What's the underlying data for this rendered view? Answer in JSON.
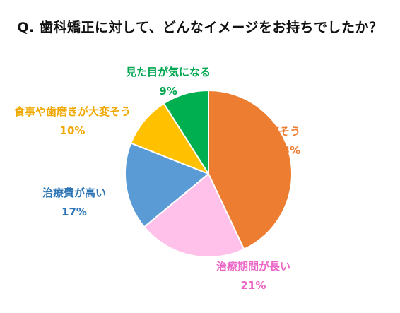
{
  "chart_data": {
    "type": "pie",
    "title": "Q.  歯科矯正に対して、どんなイメージをお持ちでしたか？",
    "slices": [
      {
        "name": "痛そう",
        "value": 43,
        "label": "43%",
        "color": "#ED7D31"
      },
      {
        "name": "治療期間が長い",
        "value": 21,
        "label": "21%",
        "color": "#FFC0EA"
      },
      {
        "name": "治療費が高い",
        "value": 17,
        "label": "17%",
        "color": "#5B9BD5"
      },
      {
        "name": "食事や歯磨きが大変そう",
        "value": 10,
        "label": "10%",
        "color": "#FFC000"
      },
      {
        "name": "見た目が気になる",
        "value": 9,
        "label": "9%",
        "color": "#00B050"
      }
    ],
    "label_colors": [
      "#ED7D31",
      "#EC66C6",
      "#2E75B6",
      "#F0A800",
      "#00A650"
    ],
    "start": "12 o'clock",
    "direction": "clockwise",
    "legend": "none"
  }
}
